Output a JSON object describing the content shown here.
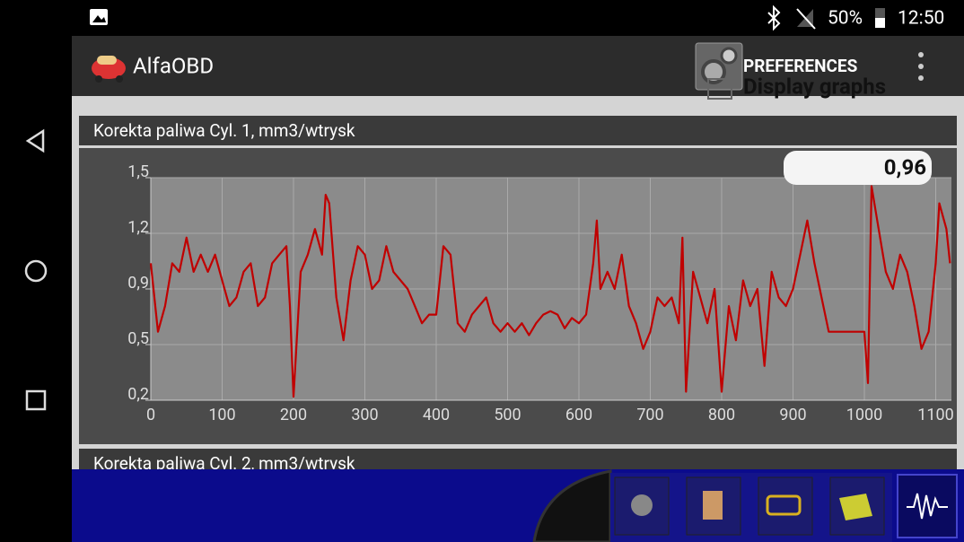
{
  "status_bar": {
    "battery": "50%",
    "time": "12:50"
  },
  "app_bar": {
    "title": "AlfaOBD",
    "menu_button": "PREFERENCES"
  },
  "hidden_option": "Display graphs",
  "current_reading": "0,96",
  "second_panel_title": "Korekta paliwa Cyl. 2, mm3/wtrysk",
  "chart_data": {
    "type": "line",
    "title": "Korekta paliwa Cyl. 1, mm3/wtrysk",
    "color": "#c00000",
    "x": [
      0,
      10,
      20,
      30,
      40,
      50,
      60,
      70,
      80,
      90,
      100,
      110,
      120,
      130,
      140,
      150,
      160,
      170,
      180,
      190,
      195,
      200,
      210,
      220,
      230,
      240,
      245,
      250,
      260,
      270,
      280,
      290,
      300,
      310,
      320,
      330,
      340,
      350,
      360,
      370,
      380,
      390,
      400,
      410,
      420,
      430,
      440,
      450,
      460,
      470,
      480,
      490,
      500,
      510,
      520,
      530,
      540,
      550,
      560,
      570,
      580,
      590,
      600,
      610,
      620,
      625,
      630,
      640,
      650,
      660,
      670,
      680,
      690,
      700,
      710,
      720,
      730,
      740,
      745,
      750,
      760,
      770,
      780,
      790,
      800,
      810,
      820,
      830,
      840,
      850,
      860,
      870,
      880,
      890,
      900,
      910,
      920,
      930,
      940,
      950,
      1000,
      1005,
      1010,
      1020,
      1030,
      1040,
      1050,
      1060,
      1070,
      1080,
      1090,
      1100,
      1105,
      1115,
      1120
    ],
    "values": [
      1.0,
      0.6,
      0.75,
      1.0,
      0.95,
      1.15,
      0.95,
      1.05,
      0.95,
      1.05,
      0.9,
      0.75,
      0.8,
      0.95,
      1.0,
      0.75,
      0.8,
      1.0,
      1.05,
      1.1,
      0.75,
      0.22,
      0.95,
      1.05,
      1.2,
      1.05,
      1.4,
      1.35,
      0.8,
      0.55,
      0.9,
      1.1,
      1.05,
      0.85,
      0.9,
      1.1,
      0.95,
      0.9,
      0.85,
      0.75,
      0.65,
      0.7,
      0.7,
      1.1,
      1.05,
      0.65,
      0.6,
      0.7,
      0.75,
      0.8,
      0.65,
      0.6,
      0.65,
      0.6,
      0.65,
      0.58,
      0.65,
      0.7,
      0.72,
      0.7,
      0.62,
      0.68,
      0.65,
      0.7,
      1.0,
      1.25,
      0.85,
      0.95,
      0.85,
      1.05,
      0.75,
      0.65,
      0.5,
      0.6,
      0.8,
      0.75,
      0.8,
      0.65,
      1.15,
      0.25,
      0.95,
      0.8,
      0.65,
      0.85,
      0.25,
      0.75,
      0.55,
      0.9,
      0.75,
      0.85,
      0.4,
      0.95,
      0.8,
      0.75,
      0.85,
      1.05,
      1.25,
      1.0,
      0.8,
      0.6,
      0.6,
      0.3,
      1.45,
      1.2,
      0.95,
      0.85,
      1.05,
      0.95,
      0.75,
      0.5,
      0.6,
      1.0,
      1.35,
      1.2,
      1.0
    ],
    "xlim": [
      0,
      1122
    ],
    "ylim": [
      0.2,
      1.5
    ],
    "xticks": [
      0,
      100,
      200,
      300,
      400,
      500,
      600,
      700,
      800,
      900,
      1000,
      1100
    ],
    "yticks": [
      {
        "value": 1.5,
        "label": "1,5"
      },
      {
        "value": 1.175,
        "label": "1,2"
      },
      {
        "value": 0.85,
        "label": "0,9"
      },
      {
        "value": 0.525,
        "label": "0,5"
      },
      {
        "value": 0.2,
        "label": "0,2"
      }
    ],
    "grid": true
  }
}
